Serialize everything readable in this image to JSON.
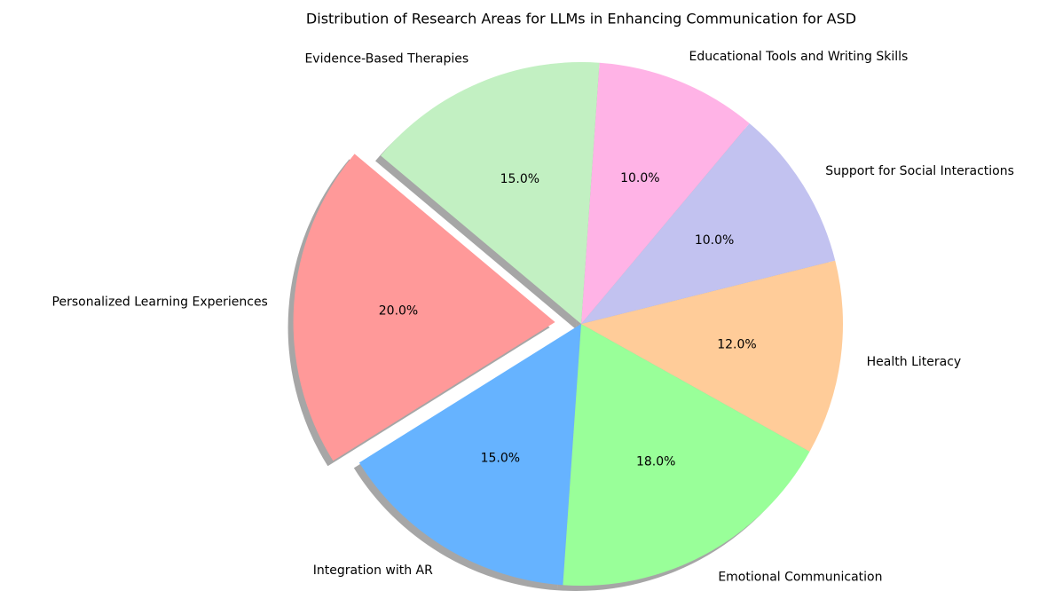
{
  "chart_data": {
    "type": "pie",
    "title": "Distribution of Research Areas for LLMs in Enhancing Communication for ASD",
    "categories": [
      "Personalized Learning Experiences",
      "Integration with AR",
      "Emotional Communication",
      "Health Literacy",
      "Support for Social Interactions",
      "Educational Tools and Writing Skills",
      "Evidence-Based Therapies"
    ],
    "values": [
      20,
      15,
      18,
      12,
      10,
      10,
      15
    ],
    "value_labels": [
      "20.0%",
      "15.0%",
      "18.0%",
      "12.0%",
      "10.0%",
      "10.0%",
      "15.0%"
    ],
    "colors": [
      "#ff9999",
      "#66b3ff",
      "#99ff99",
      "#ffcc99",
      "#c2c2f0",
      "#ffb3e6",
      "#c2f0c2"
    ],
    "shadow": true
  }
}
